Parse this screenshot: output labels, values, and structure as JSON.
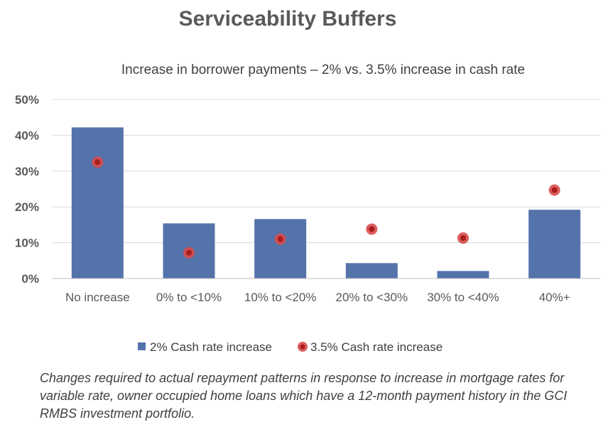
{
  "header": {
    "title": "Serviceability Buffers",
    "subtitle": "Increase in borrower payments – 2% vs. 3.5% increase in cash rate"
  },
  "colors": {
    "bar": "#5473ab",
    "dot_outer": "#d84b4b",
    "dot_inner": "#a81c1c",
    "grid": "#d9d9d9",
    "axis": "#bfbfbf"
  },
  "chart_data": {
    "type": "bar",
    "title": "Increase in borrower payments – 2% vs. 3.5% increase in cash rate",
    "xlabel": "",
    "ylabel": "",
    "ylim": [
      0,
      50
    ],
    "yticks": [
      0,
      10,
      20,
      30,
      40,
      50
    ],
    "ytick_labels": [
      "0%",
      "10%",
      "20%",
      "30%",
      "40%",
      "50%"
    ],
    "grid": true,
    "legend_position": "bottom",
    "categories": [
      "No increase",
      "0% to <10%",
      "10% to <20%",
      "20% to <30%",
      "30% to <40%",
      "40%+"
    ],
    "series": [
      {
        "name": "2% Cash rate increase",
        "kind": "bar",
        "values": [
          42.2,
          15.4,
          16.6,
          4.3,
          2.1,
          19.2
        ]
      },
      {
        "name": "3.5% Cash rate increase",
        "kind": "marker",
        "values": [
          32.5,
          7.2,
          11.0,
          13.8,
          11.3,
          24.7
        ]
      }
    ]
  },
  "footer": {
    "caption": "Changes required to actual repayment patterns in response to increase in mortgage rates for variable rate, owner occupied home loans which have a 12-month payment history in the GCI RMBS investment portfolio."
  }
}
